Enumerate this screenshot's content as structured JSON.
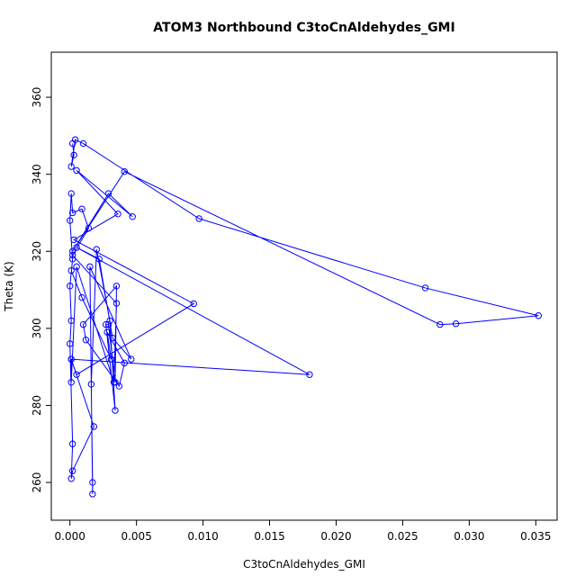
{
  "chart_data": {
    "type": "line",
    "title": "ATOM3 Northbound C3toCnAldehydes_GMI",
    "x_label": "C3toCnAldehydes_GMI",
    "y_label": "Theta (K)",
    "color": "#0000ff",
    "markers": true,
    "x": [
      0.0002,
      0.0003,
      0.0001,
      0.0004,
      0.001,
      0.0097,
      0.0267,
      0.0352,
      0.029,
      0.0278,
      0.0041,
      0.0002,
      0.0029,
      0.0047,
      0.0005,
      0.0036,
      0.0003,
      0.0093,
      0.0005,
      0.0001,
      0.0018,
      0.0002,
      0.0001,
      0.0002,
      0.0,
      0.0001,
      0.0,
      0.0002,
      0.0,
      0.0001,
      0.0002,
      0.0009,
      0.0014,
      0.0002,
      0.0035,
      0.0033,
      0.0005,
      0.0001,
      0.0001,
      0.018,
      0.0005,
      0.0022,
      0.0032,
      0.0046,
      0.0015,
      0.0017,
      0.0017,
      0.0016,
      0.002,
      0.003,
      0.0034,
      0.0027,
      0.0029,
      0.0034,
      0.0035,
      0.001,
      0.0012,
      0.0037,
      0.0041,
      0.0028,
      0.0031,
      0.0009,
      0.0001
    ],
    "values": [
      348,
      345,
      342,
      349,
      348,
      328.5,
      310.5,
      303.3,
      301.2,
      301,
      340.7,
      320,
      335,
      329,
      341,
      329.7,
      323,
      306.4,
      288,
      292,
      274.5,
      263,
      261,
      270,
      296,
      302,
      311,
      318,
      328,
      335,
      330,
      331,
      326,
      319,
      306.5,
      286,
      316,
      286,
      292,
      288,
      321,
      318,
      297.5,
      292,
      316,
      257,
      260,
      285.5,
      320.5,
      302,
      278.7,
      301,
      301,
      286,
      311,
      301,
      297,
      285,
      291,
      299,
      292,
      308,
      315
    ],
    "xlim": [
      -0.0014,
      0.0366
    ],
    "ylim": [
      250.2,
      371.7
    ],
    "xticks": [
      {
        "value": 0,
        "label": "0.000"
      },
      {
        "value": 0.005,
        "label": "0.005"
      },
      {
        "value": 0.01,
        "label": "0.010"
      },
      {
        "value": 0.015,
        "label": "0.015"
      },
      {
        "value": 0.02,
        "label": "0.020"
      },
      {
        "value": 0.025,
        "label": "0.025"
      },
      {
        "value": 0.03,
        "label": "0.030"
      },
      {
        "value": 0.035,
        "label": "0.035"
      }
    ],
    "yticks": [
      260,
      280,
      300,
      320,
      340,
      360
    ]
  }
}
